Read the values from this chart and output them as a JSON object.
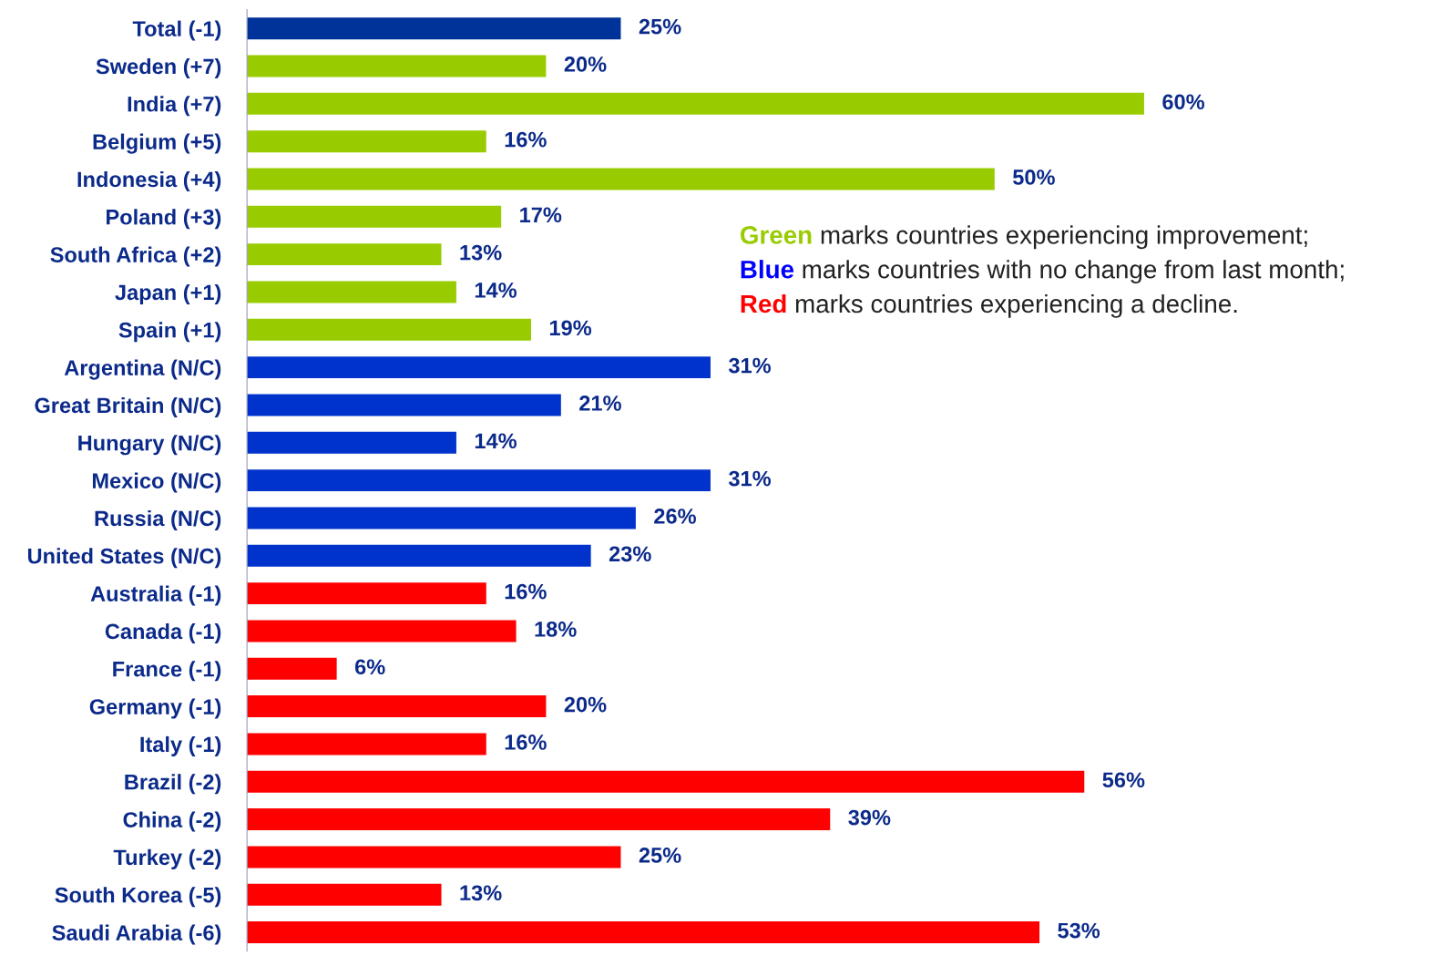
{
  "chart_data": {
    "type": "bar",
    "orientation": "horizontal",
    "categories": [
      "Total (-1)",
      "Sweden (+7)",
      "India (+7)",
      "Belgium (+5)",
      "Indonesia (+4)",
      "Poland (+3)",
      "South Africa (+2)",
      "Japan (+1)",
      "Spain (+1)",
      "Argentina (N/C)",
      "Great Britain (N/C)",
      "Hungary (N/C)",
      "Mexico (N/C)",
      "Russia (N/C)",
      "United States (N/C)",
      "Australia (-1)",
      "Canada (-1)",
      "France (-1)",
      "Germany (-1)",
      "Italy (-1)",
      "Brazil (-2)",
      "China (-2)",
      "Turkey (-2)",
      "South Korea (-5)",
      "Saudi Arabia (-6)"
    ],
    "values": [
      25,
      20,
      60,
      16,
      50,
      17,
      13,
      14,
      19,
      31,
      21,
      14,
      31,
      26,
      23,
      16,
      18,
      6,
      20,
      16,
      56,
      39,
      25,
      13,
      53
    ],
    "value_labels": [
      "25%",
      "20%",
      "60%",
      "16%",
      "50%",
      "17%",
      "13%",
      "14%",
      "19%",
      "31%",
      "21%",
      "14%",
      "31%",
      "26%",
      "23%",
      "16%",
      "18%",
      "6%",
      "20%",
      "16%",
      "56%",
      "39%",
      "25%",
      "13%",
      "53%"
    ],
    "colors": [
      "#003399",
      "#99cc00",
      "#99cc00",
      "#99cc00",
      "#99cc00",
      "#99cc00",
      "#99cc00",
      "#99cc00",
      "#99cc00",
      "#0033cc",
      "#0033cc",
      "#0033cc",
      "#0033cc",
      "#0033cc",
      "#0033cc",
      "#ff0000",
      "#ff0000",
      "#ff0000",
      "#ff0000",
      "#ff0000",
      "#ff0000",
      "#ff0000",
      "#ff0000",
      "#ff0000",
      "#ff0000"
    ],
    "annotations": [
      "Green marks countries experiencing improvement;",
      "Blue marks countries with no change from last month;",
      "Red marks countries experiencing a decline."
    ],
    "grid": false,
    "legend": false
  }
}
